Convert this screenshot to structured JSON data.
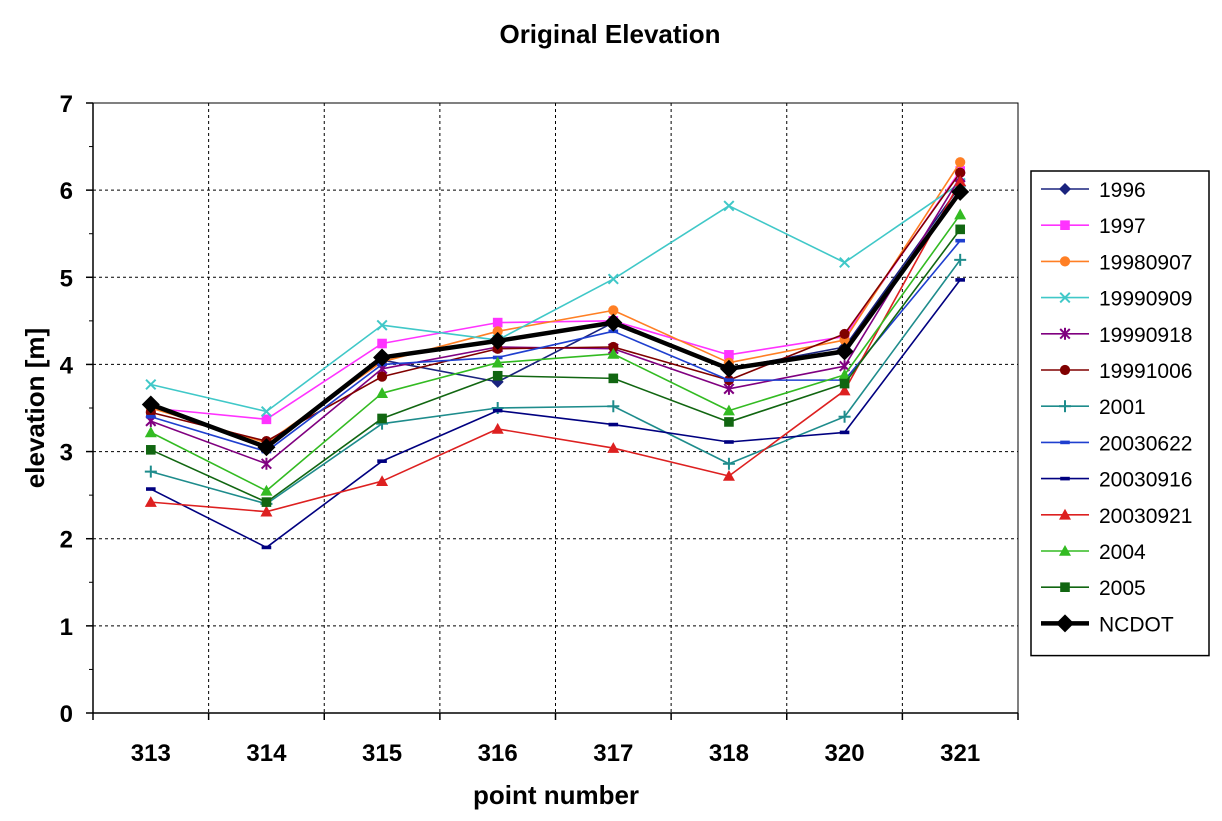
{
  "chart_data": {
    "type": "line",
    "title": "Original Elevation",
    "xlabel": "point number",
    "ylabel": "elevation [m]",
    "categories": [
      "313",
      "314",
      "315",
      "316",
      "317",
      "318",
      "320",
      "321"
    ],
    "ylim": [
      0,
      7
    ],
    "yticks": [
      "0",
      "1",
      "2",
      "3",
      "4",
      "5",
      "6",
      "7"
    ],
    "grid": true,
    "legend_position": "right",
    "series": [
      {
        "name": "1996",
        "color": "#1a237e",
        "marker": "diamond",
        "values": [
          3.52,
          3.05,
          4.05,
          3.8,
          4.48,
          3.95,
          4.2,
          6.05
        ]
      },
      {
        "name": "1997",
        "color": "#ff33ff",
        "marker": "square",
        "values": [
          3.5,
          3.37,
          4.24,
          4.48,
          4.5,
          4.11,
          4.32,
          6.22
        ]
      },
      {
        "name": "19980907",
        "color": "#ff7f24",
        "marker": "circle",
        "values": [
          3.5,
          3.1,
          4.03,
          4.38,
          4.62,
          4.02,
          4.28,
          6.32
        ]
      },
      {
        "name": "19990909",
        "color": "#40c8c8",
        "marker": "x",
        "values": [
          3.77,
          3.46,
          4.45,
          4.28,
          4.98,
          5.82,
          5.17,
          6.08
        ]
      },
      {
        "name": "19990918",
        "color": "#800080",
        "marker": "star",
        "values": [
          3.35,
          2.86,
          3.95,
          4.2,
          4.18,
          3.72,
          3.98,
          6.15
        ]
      },
      {
        "name": "19991006",
        "color": "#800000",
        "marker": "circle",
        "values": [
          3.45,
          3.12,
          3.86,
          4.18,
          4.2,
          3.82,
          4.35,
          6.2
        ]
      },
      {
        "name": "2001",
        "color": "#1e8c8c",
        "marker": "plus",
        "values": [
          2.77,
          2.4,
          3.32,
          3.5,
          3.52,
          2.86,
          3.4,
          5.2
        ]
      },
      {
        "name": "20030622",
        "color": "#1f3fcf",
        "marker": "dash",
        "values": [
          3.4,
          3.0,
          4.0,
          4.08,
          4.38,
          3.82,
          3.82,
          5.42
        ]
      },
      {
        "name": "20030916",
        "color": "#000080",
        "marker": "dash",
        "values": [
          2.57,
          1.9,
          2.89,
          3.47,
          3.31,
          3.11,
          3.22,
          4.97
        ]
      },
      {
        "name": "20030921",
        "color": "#dd2020",
        "marker": "triangle",
        "values": [
          2.42,
          2.31,
          2.66,
          3.26,
          3.04,
          2.72,
          3.7,
          6.1
        ]
      },
      {
        "name": "2004",
        "color": "#33bb22",
        "marker": "triangle",
        "values": [
          3.22,
          2.55,
          3.67,
          4.02,
          4.12,
          3.47,
          3.88,
          5.72
        ]
      },
      {
        "name": "2005",
        "color": "#116611",
        "marker": "square",
        "values": [
          3.02,
          2.42,
          3.38,
          3.87,
          3.84,
          3.34,
          3.78,
          5.55
        ]
      },
      {
        "name": "NCDOT",
        "color": "#000000",
        "marker": "diamond",
        "bold": true,
        "values": [
          3.54,
          3.05,
          4.08,
          4.27,
          4.48,
          3.95,
          4.15,
          5.98
        ]
      }
    ]
  }
}
